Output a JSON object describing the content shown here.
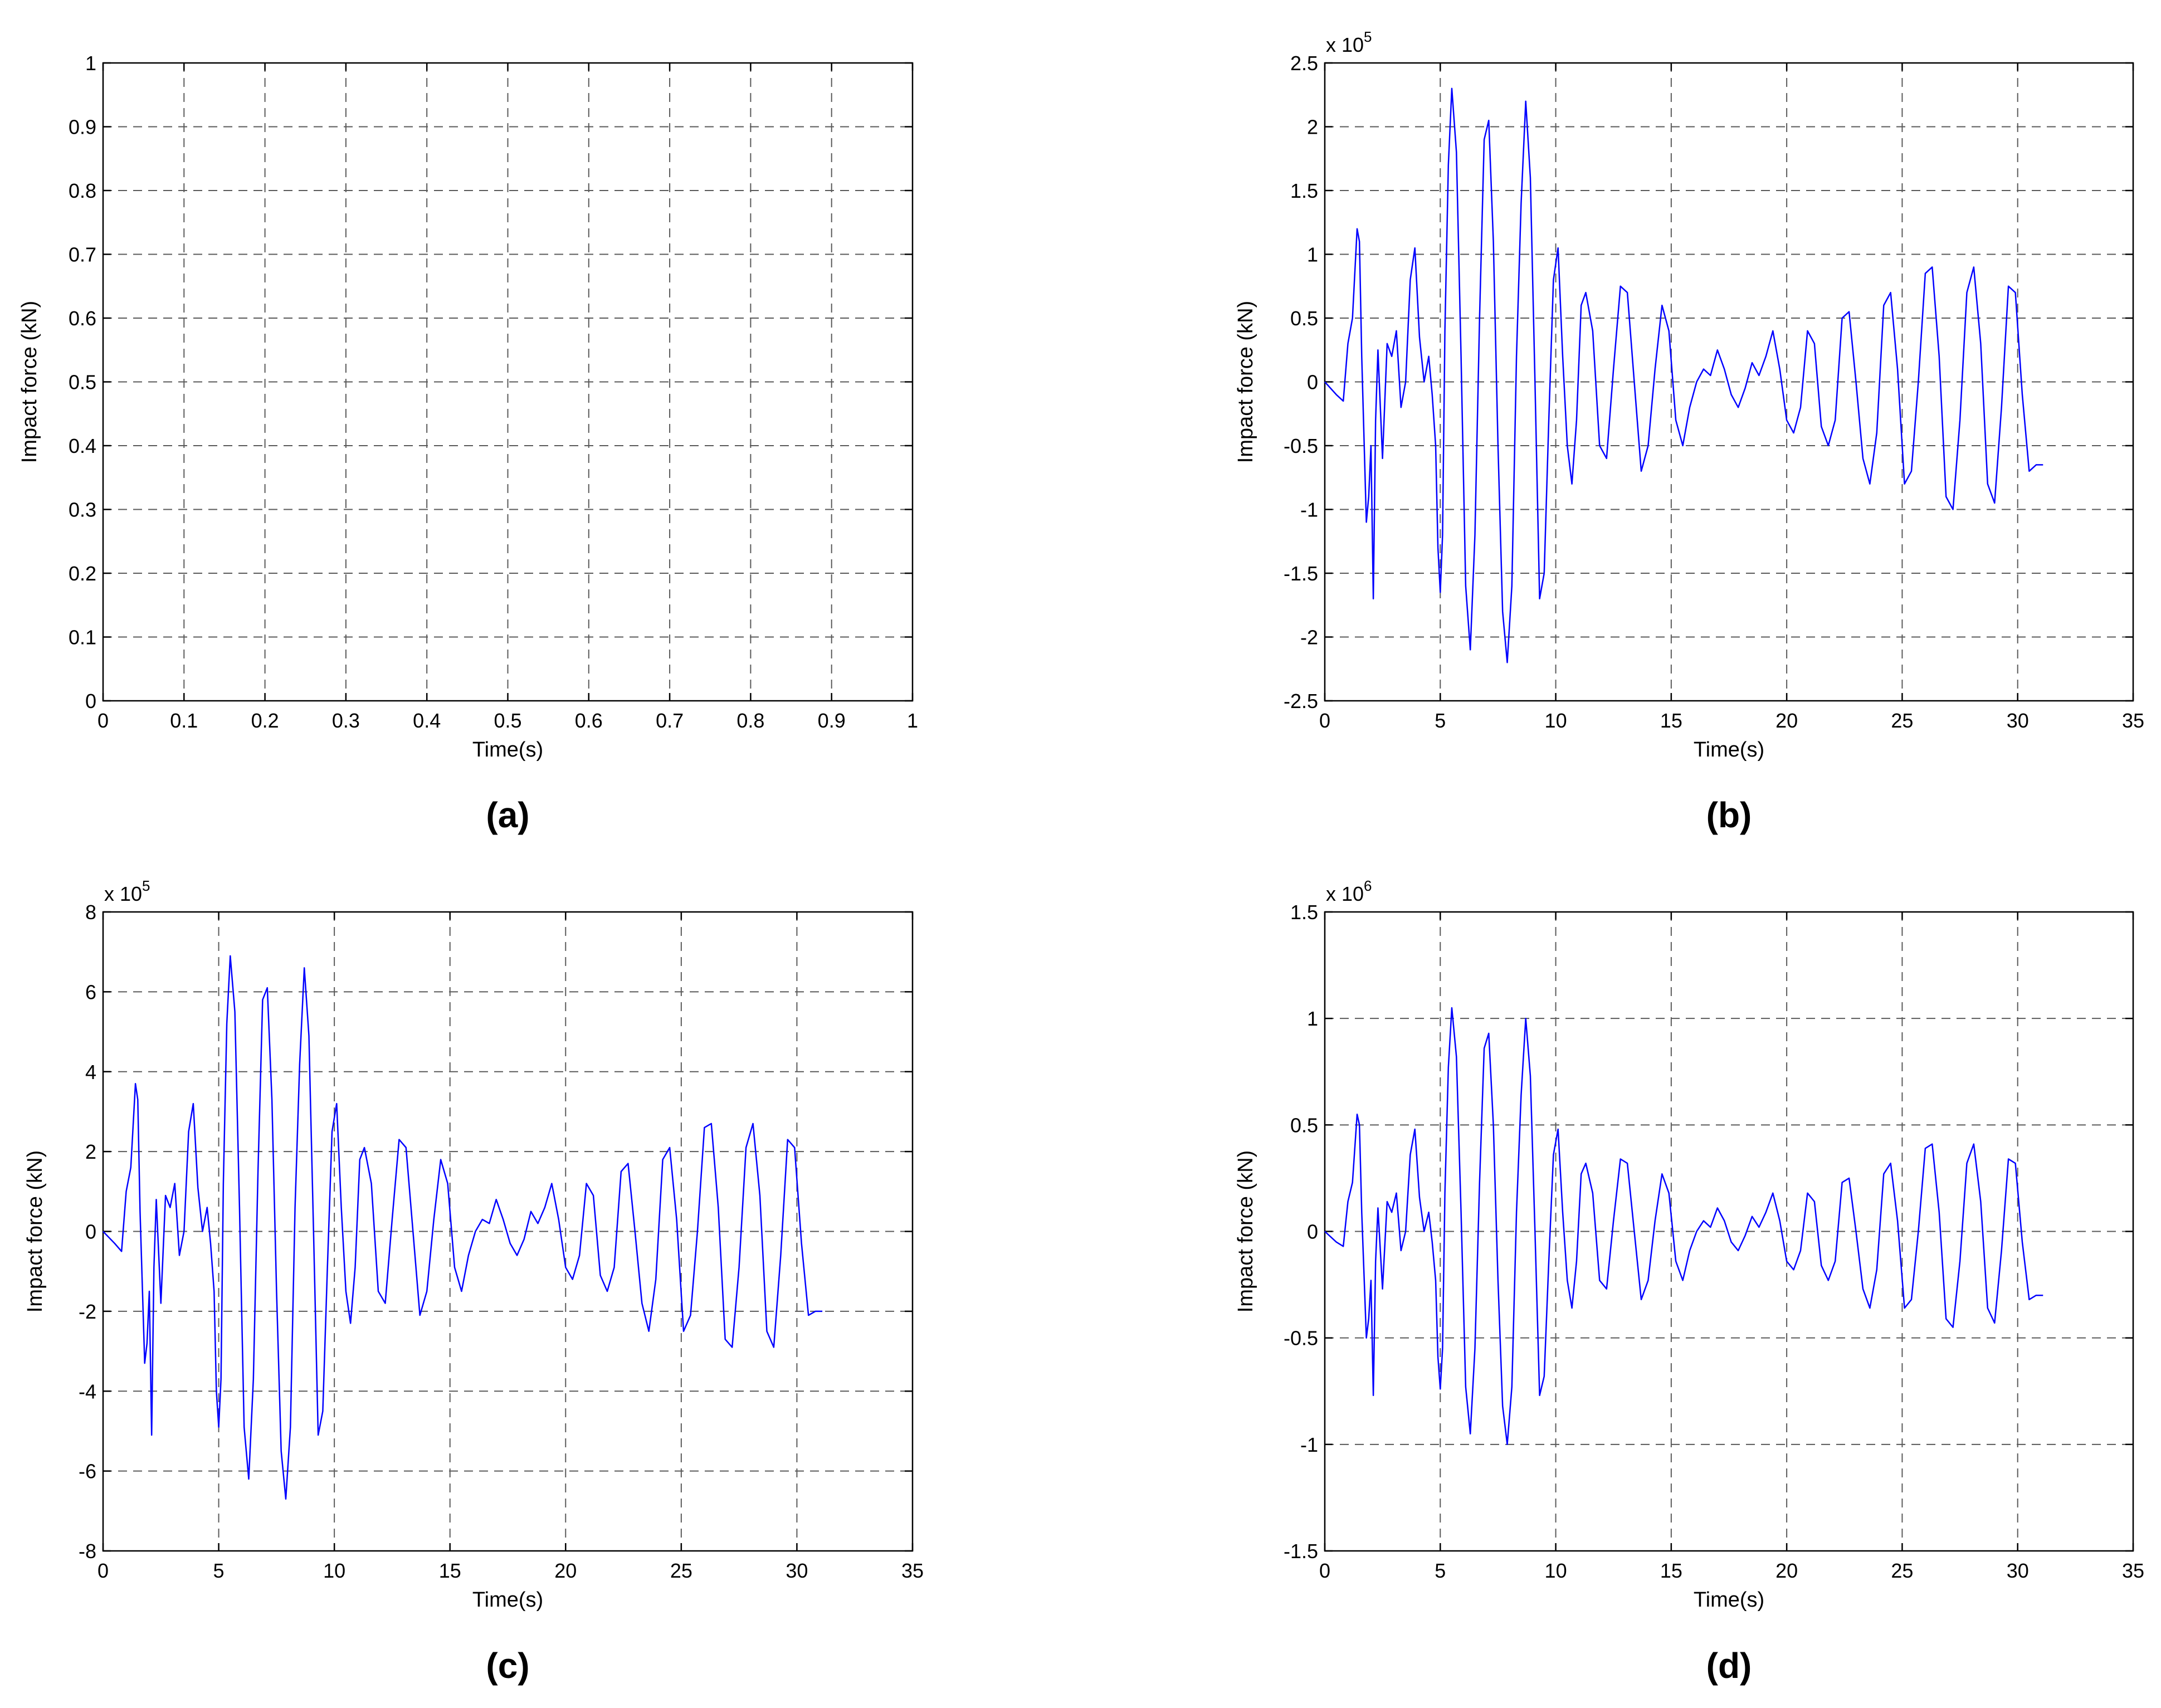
{
  "chart_data": [
    {
      "type": "line",
      "panel_label": "(a)",
      "xlabel": "Time(s)",
      "ylabel": "Impact force (kN)",
      "exponent_label": "",
      "xlim": [
        0,
        1
      ],
      "ylim": [
        0,
        1
      ],
      "xticks": [
        0,
        0.1,
        0.2,
        0.3,
        0.4,
        0.5,
        0.6,
        0.7,
        0.8,
        0.9,
        1
      ],
      "xtick_labels": [
        "0",
        "0.1",
        "0.2",
        "0.3",
        "0.4",
        "0.5",
        "0.6",
        "0.7",
        "0.8",
        "0.9",
        "1"
      ],
      "yticks": [
        0,
        0.1,
        0.2,
        0.3,
        0.4,
        0.5,
        0.6,
        0.7,
        0.8,
        0.9,
        1
      ],
      "ytick_labels": [
        "0",
        "0.1",
        "0.2",
        "0.3",
        "0.4",
        "0.5",
        "0.6",
        "0.7",
        "0.8",
        "0.9",
        "1"
      ],
      "grid": true,
      "series": []
    },
    {
      "type": "line",
      "panel_label": "(b)",
      "xlabel": "Time(s)",
      "ylabel": "Impact force (kN)",
      "exponent_label": "x 10^5",
      "exponent_base": "x 10",
      "exponent_power": "5",
      "xlim": [
        0,
        35
      ],
      "ylim": [
        -2.5,
        2.5
      ],
      "xticks": [
        0,
        5,
        10,
        15,
        20,
        25,
        30,
        35
      ],
      "xtick_labels": [
        "0",
        "5",
        "10",
        "15",
        "20",
        "25",
        "30",
        "35"
      ],
      "yticks": [
        -2.5,
        -2,
        -1.5,
        -1,
        -0.5,
        0,
        0.5,
        1,
        1.5,
        2,
        2.5
      ],
      "ytick_labels": [
        "-2.5",
        "-2",
        "-1.5",
        "-1",
        "-0.5",
        "0",
        "0.5",
        "1",
        "1.5",
        "2",
        "2.5"
      ],
      "grid": true,
      "series": [
        {
          "color": "#0000ff",
          "x": [
            0.0,
            0.5,
            0.8,
            1.0,
            1.2,
            1.4,
            1.5,
            1.6,
            1.8,
            1.9,
            2.0,
            2.1,
            2.2,
            2.3,
            2.5,
            2.7,
            2.9,
            3.1,
            3.3,
            3.5,
            3.7,
            3.9,
            4.1,
            4.3,
            4.5,
            4.65,
            4.8,
            4.9,
            5.0,
            5.1,
            5.2,
            5.35,
            5.5,
            5.7,
            5.9,
            6.1,
            6.3,
            6.5,
            6.7,
            6.9,
            7.1,
            7.3,
            7.5,
            7.7,
            7.9,
            8.1,
            8.3,
            8.5,
            8.7,
            8.9,
            9.1,
            9.3,
            9.5,
            9.7,
            9.9,
            10.1,
            10.3,
            10.5,
            10.7,
            10.9,
            11.1,
            11.3,
            11.6,
            11.9,
            12.2,
            12.5,
            12.8,
            13.1,
            13.4,
            13.7,
            14.0,
            14.3,
            14.6,
            14.9,
            15.2,
            15.5,
            15.8,
            16.1,
            16.4,
            16.7,
            17.0,
            17.3,
            17.6,
            17.9,
            18.2,
            18.5,
            18.8,
            19.1,
            19.4,
            19.7,
            20.0,
            20.3,
            20.6,
            20.9,
            21.2,
            21.5,
            21.8,
            22.1,
            22.4,
            22.7,
            23.0,
            23.3,
            23.6,
            23.9,
            24.2,
            24.5,
            24.8,
            25.1,
            25.4,
            25.7,
            26.0,
            26.3,
            26.6,
            26.9,
            27.2,
            27.5,
            27.8,
            28.1,
            28.4,
            28.7,
            29.0,
            29.3,
            29.6,
            29.9,
            30.2,
            30.5,
            30.8,
            31.1
          ],
          "y": [
            0.0,
            -0.1,
            -0.15,
            0.3,
            0.5,
            1.2,
            1.1,
            0.2,
            -1.1,
            -0.9,
            -0.5,
            -1.7,
            -0.3,
            0.25,
            -0.6,
            0.3,
            0.2,
            0.4,
            -0.2,
            0.0,
            0.8,
            1.05,
            0.35,
            0.0,
            0.2,
            -0.1,
            -0.5,
            -1.3,
            -1.65,
            -1.2,
            0.4,
            1.7,
            2.3,
            1.8,
            0.2,
            -1.6,
            -2.1,
            -1.2,
            0.5,
            1.9,
            2.05,
            1.1,
            -0.5,
            -1.8,
            -2.2,
            -1.6,
            0.2,
            1.4,
            2.2,
            1.6,
            0.0,
            -1.7,
            -1.5,
            -0.3,
            0.8,
            1.05,
            0.2,
            -0.5,
            -0.8,
            -0.3,
            0.6,
            0.7,
            0.4,
            -0.5,
            -0.6,
            0.1,
            0.75,
            0.7,
            0.0,
            -0.7,
            -0.5,
            0.1,
            0.6,
            0.4,
            -0.3,
            -0.5,
            -0.2,
            0.0,
            0.1,
            0.05,
            0.25,
            0.1,
            -0.1,
            -0.2,
            -0.05,
            0.15,
            0.05,
            0.2,
            0.4,
            0.1,
            -0.3,
            -0.4,
            -0.2,
            0.4,
            0.3,
            -0.35,
            -0.5,
            -0.3,
            0.5,
            0.55,
            0.0,
            -0.6,
            -0.8,
            -0.4,
            0.6,
            0.7,
            0.1,
            -0.8,
            -0.7,
            0.0,
            0.85,
            0.9,
            0.2,
            -0.9,
            -1.0,
            -0.3,
            0.7,
            0.9,
            0.3,
            -0.8,
            -0.95,
            -0.2,
            0.75,
            0.7,
            -0.1,
            -0.7,
            -0.65,
            -0.65
          ]
        }
      ]
    },
    {
      "type": "line",
      "panel_label": "(c)",
      "xlabel": "Time(s)",
      "ylabel": "Impact force (kN)",
      "exponent_label": "x 10^5",
      "exponent_base": "x 10",
      "exponent_power": "5",
      "xlim": [
        0,
        35
      ],
      "ylim": [
        -8,
        8
      ],
      "xticks": [
        0,
        5,
        10,
        15,
        20,
        25,
        30,
        35
      ],
      "xtick_labels": [
        "0",
        "5",
        "10",
        "15",
        "20",
        "25",
        "30",
        "35"
      ],
      "yticks": [
        -8,
        -6,
        -4,
        -2,
        0,
        2,
        4,
        6,
        8
      ],
      "ytick_labels": [
        "-8",
        "-6",
        "-4",
        "-2",
        "0",
        "2",
        "4",
        "6",
        "8"
      ],
      "grid": true,
      "series": [
        {
          "color": "#0000ff",
          "x": [
            0.0,
            0.5,
            0.8,
            1.0,
            1.2,
            1.4,
            1.5,
            1.6,
            1.8,
            1.9,
            2.0,
            2.1,
            2.2,
            2.3,
            2.5,
            2.7,
            2.9,
            3.1,
            3.3,
            3.5,
            3.7,
            3.9,
            4.1,
            4.3,
            4.5,
            4.65,
            4.8,
            4.9,
            5.0,
            5.1,
            5.2,
            5.35,
            5.5,
            5.7,
            5.9,
            6.1,
            6.3,
            6.5,
            6.7,
            6.9,
            7.1,
            7.3,
            7.5,
            7.7,
            7.9,
            8.1,
            8.3,
            8.5,
            8.7,
            8.9,
            9.1,
            9.3,
            9.5,
            9.7,
            9.9,
            10.1,
            10.3,
            10.5,
            10.7,
            10.9,
            11.1,
            11.3,
            11.6,
            11.9,
            12.2,
            12.5,
            12.8,
            13.1,
            13.4,
            13.7,
            14.0,
            14.3,
            14.6,
            14.9,
            15.2,
            15.5,
            15.8,
            16.1,
            16.4,
            16.7,
            17.0,
            17.3,
            17.6,
            17.9,
            18.2,
            18.5,
            18.8,
            19.1,
            19.4,
            19.7,
            20.0,
            20.3,
            20.6,
            20.9,
            21.2,
            21.5,
            21.8,
            22.1,
            22.4,
            22.7,
            23.0,
            23.3,
            23.6,
            23.9,
            24.2,
            24.5,
            24.8,
            25.1,
            25.4,
            25.7,
            26.0,
            26.3,
            26.6,
            26.9,
            27.2,
            27.5,
            27.8,
            28.1,
            28.4,
            28.7,
            29.0,
            29.3,
            29.6,
            29.9,
            30.2,
            30.5,
            30.8,
            31.1
          ],
          "y": [
            0.0,
            -0.3,
            -0.5,
            1.0,
            1.6,
            3.7,
            3.3,
            0.5,
            -3.3,
            -2.8,
            -1.5,
            -5.1,
            -0.9,
            0.8,
            -1.8,
            0.9,
            0.6,
            1.2,
            -0.6,
            0.0,
            2.5,
            3.2,
            1.1,
            0.0,
            0.6,
            -0.3,
            -1.5,
            -4.0,
            -4.9,
            -3.7,
            1.2,
            5.2,
            6.9,
            5.5,
            0.6,
            -4.9,
            -6.2,
            -3.7,
            1.5,
            5.8,
            6.1,
            3.3,
            -1.5,
            -5.5,
            -6.7,
            -4.9,
            0.6,
            4.2,
            6.6,
            4.9,
            0.0,
            -5.1,
            -4.5,
            -0.9,
            2.5,
            3.2,
            0.6,
            -1.5,
            -2.3,
            -0.9,
            1.8,
            2.1,
            1.2,
            -1.5,
            -1.8,
            0.3,
            2.3,
            2.1,
            0.0,
            -2.1,
            -1.5,
            0.3,
            1.8,
            1.2,
            -0.9,
            -1.5,
            -0.6,
            0.0,
            0.3,
            0.2,
            0.8,
            0.3,
            -0.3,
            -0.6,
            -0.2,
            0.5,
            0.2,
            0.6,
            1.2,
            0.3,
            -0.9,
            -1.2,
            -0.6,
            1.2,
            0.9,
            -1.1,
            -1.5,
            -0.9,
            1.5,
            1.7,
            0.0,
            -1.8,
            -2.5,
            -1.2,
            1.8,
            2.1,
            0.3,
            -2.5,
            -2.1,
            0.0,
            2.6,
            2.7,
            0.6,
            -2.7,
            -2.9,
            -0.9,
            2.1,
            2.7,
            0.9,
            -2.5,
            -2.9,
            -0.6,
            2.3,
            2.1,
            -0.3,
            -2.1,
            -2.0,
            -2.0
          ]
        }
      ]
    },
    {
      "type": "line",
      "panel_label": "(d)",
      "xlabel": "Time(s)",
      "ylabel": "Impact force (kN)",
      "exponent_label": "x 10^6",
      "exponent_base": "x 10",
      "exponent_power": "6",
      "xlim": [
        0,
        35
      ],
      "ylim": [
        -1.5,
        1.5
      ],
      "xticks": [
        0,
        5,
        10,
        15,
        20,
        25,
        30,
        35
      ],
      "xtick_labels": [
        "0",
        "5",
        "10",
        "15",
        "20",
        "25",
        "30",
        "35"
      ],
      "yticks": [
        -1.5,
        -1,
        -0.5,
        0,
        0.5,
        1,
        1.5
      ],
      "ytick_labels": [
        "-1.5",
        "-1",
        "-0.5",
        "0",
        "0.5",
        "1",
        "1.5"
      ],
      "grid": true,
      "series": [
        {
          "color": "#0000ff",
          "x": [
            0.0,
            0.5,
            0.8,
            1.0,
            1.2,
            1.4,
            1.5,
            1.6,
            1.8,
            1.9,
            2.0,
            2.1,
            2.2,
            2.3,
            2.5,
            2.7,
            2.9,
            3.1,
            3.3,
            3.5,
            3.7,
            3.9,
            4.1,
            4.3,
            4.5,
            4.65,
            4.8,
            4.9,
            5.0,
            5.1,
            5.2,
            5.35,
            5.5,
            5.7,
            5.9,
            6.1,
            6.3,
            6.5,
            6.7,
            6.9,
            7.1,
            7.3,
            7.5,
            7.7,
            7.9,
            8.1,
            8.3,
            8.5,
            8.7,
            8.9,
            9.1,
            9.3,
            9.5,
            9.7,
            9.9,
            10.1,
            10.3,
            10.5,
            10.7,
            10.9,
            11.1,
            11.3,
            11.6,
            11.9,
            12.2,
            12.5,
            12.8,
            13.1,
            13.4,
            13.7,
            14.0,
            14.3,
            14.6,
            14.9,
            15.2,
            15.5,
            15.8,
            16.1,
            16.4,
            16.7,
            17.0,
            17.3,
            17.6,
            17.9,
            18.2,
            18.5,
            18.8,
            19.1,
            19.4,
            19.7,
            20.0,
            20.3,
            20.6,
            20.9,
            21.2,
            21.5,
            21.8,
            22.1,
            22.4,
            22.7,
            23.0,
            23.3,
            23.6,
            23.9,
            24.2,
            24.5,
            24.8,
            25.1,
            25.4,
            25.7,
            26.0,
            26.3,
            26.6,
            26.9,
            27.2,
            27.5,
            27.8,
            28.1,
            28.4,
            28.7,
            29.0,
            29.3,
            29.6,
            29.9,
            30.2,
            30.5,
            30.8,
            31.1
          ],
          "y": [
            0.0,
            -0.05,
            -0.07,
            0.14,
            0.23,
            0.55,
            0.5,
            0.09,
            -0.5,
            -0.41,
            -0.23,
            -0.77,
            -0.14,
            0.11,
            -0.27,
            0.14,
            0.09,
            0.18,
            -0.09,
            0.0,
            0.36,
            0.48,
            0.16,
            0.0,
            0.09,
            -0.05,
            -0.23,
            -0.59,
            -0.74,
            -0.55,
            0.18,
            0.77,
            1.05,
            0.82,
            0.09,
            -0.73,
            -0.95,
            -0.55,
            0.23,
            0.86,
            0.93,
            0.5,
            -0.23,
            -0.82,
            -1.0,
            -0.73,
            0.09,
            0.64,
            1.0,
            0.73,
            0.0,
            -0.77,
            -0.68,
            -0.14,
            0.36,
            0.48,
            0.09,
            -0.23,
            -0.36,
            -0.14,
            0.27,
            0.32,
            0.18,
            -0.23,
            -0.27,
            0.05,
            0.34,
            0.32,
            0.0,
            -0.32,
            -0.23,
            0.05,
            0.27,
            0.18,
            -0.14,
            -0.23,
            -0.09,
            0.0,
            0.05,
            0.02,
            0.11,
            0.05,
            -0.05,
            -0.09,
            -0.02,
            0.07,
            0.02,
            0.09,
            0.18,
            0.05,
            -0.14,
            -0.18,
            -0.09,
            0.18,
            0.14,
            -0.16,
            -0.23,
            -0.14,
            0.23,
            0.25,
            0.0,
            -0.27,
            -0.36,
            -0.18,
            0.27,
            0.32,
            0.05,
            -0.36,
            -0.32,
            0.0,
            0.39,
            0.41,
            0.09,
            -0.41,
            -0.45,
            -0.14,
            0.32,
            0.41,
            0.14,
            -0.36,
            -0.43,
            -0.09,
            0.34,
            0.32,
            -0.05,
            -0.32,
            -0.3,
            -0.3
          ]
        }
      ]
    }
  ]
}
